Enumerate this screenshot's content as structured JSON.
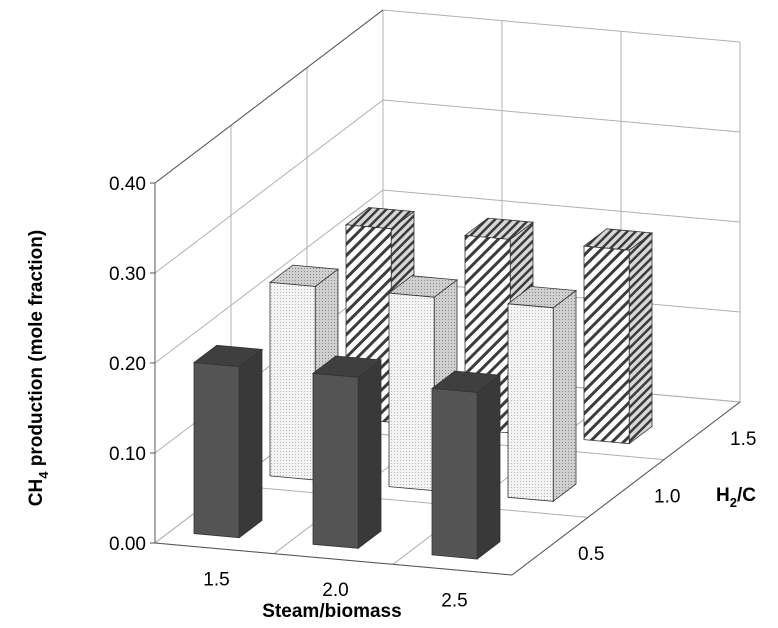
{
  "chart_data": {
    "type": "bar",
    "subtype": "3d-column",
    "title": "",
    "xlabel": "Steam/biomass",
    "ylabel": "CH",
    "ylabel_sub": "4",
    "ylabel_rest": " production (mole fraction)",
    "zlabel": "H",
    "zlabel_sub": "2",
    "zlabel_rest": "/C",
    "categories": [
      "1.5",
      "2.0",
      "2.5"
    ],
    "yticks": [
      "0.00",
      "0.10",
      "0.20",
      "0.30",
      "0.40"
    ],
    "ylim": [
      0,
      0.4
    ],
    "grid": true,
    "legend": "none",
    "series": [
      {
        "h2c": "0.5",
        "values": [
          0.19,
          0.19,
          0.185
        ],
        "fill": "#545454"
      },
      {
        "h2c": "1.0",
        "values": [
          0.215,
          0.215,
          0.215
        ],
        "fill": "#f2f2f2",
        "pattern": "dots"
      },
      {
        "h2c": "1.5",
        "values": [
          0.215,
          0.215,
          0.215
        ],
        "fill": "#ffffff",
        "pattern": "diagonal-stripes"
      }
    ]
  }
}
